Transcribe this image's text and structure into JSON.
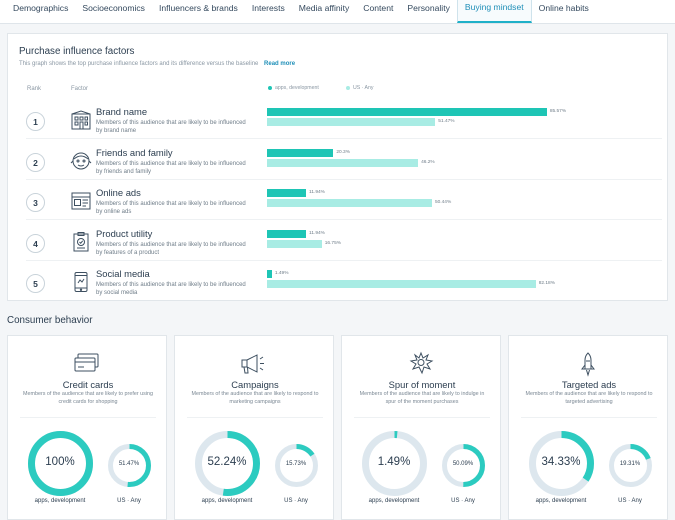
{
  "tabs": [
    {
      "label": "Demographics",
      "active": false
    },
    {
      "label": "Socioeconomics",
      "active": false
    },
    {
      "label": "Influencers & brands",
      "active": false
    },
    {
      "label": "Interests",
      "active": false
    },
    {
      "label": "Media affinity",
      "active": false
    },
    {
      "label": "Content",
      "active": false
    },
    {
      "label": "Personality",
      "active": false
    },
    {
      "label": "Buying mindset",
      "active": true
    },
    {
      "label": "Online habits",
      "active": false
    }
  ],
  "purchase": {
    "title": "Purchase influence factors",
    "subtitle": "This graph shows the top purchase influence factors and its difference versus the baseline",
    "read_more": "Read more",
    "col_rank": "Rank",
    "col_factor": "Factor",
    "legend_a": "apps, development",
    "legend_b": "US · Any",
    "colors": {
      "audience": "#1ec5b5",
      "baseline": "#a8ece4"
    },
    "factors": [
      {
        "rank": "1",
        "name": "Brand name",
        "desc": "Members of this audience that are likely to be influenced by brand name",
        "icon": "building-icon",
        "a": 85.57,
        "b": 51.47,
        "a_label": "85.57%",
        "b_label": "51.47%"
      },
      {
        "rank": "2",
        "name": "Friends and family",
        "desc": "Members of this audience that are likely to be influenced by friends and family",
        "icon": "face-icon",
        "a": 20.3,
        "b": 46.2,
        "a_label": "20.3%",
        "b_label": "46.2%"
      },
      {
        "rank": "3",
        "name": "Online ads",
        "desc": "Members of this audience that are likely to be influenced by online ads",
        "icon": "browser-icon",
        "a": 11.94,
        "b": 50.44,
        "a_label": "11.94%",
        "b_label": "50.44%"
      },
      {
        "rank": "4",
        "name": "Product utility",
        "desc": "Members of this audience that are likely to be influenced by features of a product",
        "icon": "clipboard-icon",
        "a": 11.94,
        "b": 16.75,
        "a_label": "11.94%",
        "b_label": "16.75%"
      },
      {
        "rank": "5",
        "name": "Social media",
        "desc": "Members of this audience that are likely to be influenced by social media",
        "icon": "phone-icon",
        "a": 1.49,
        "b": 82.18,
        "a_label": "1.49%",
        "b_label": "82.18%"
      }
    ]
  },
  "consumer": {
    "title": "Consumer behavior",
    "cards": [
      {
        "name": "Credit cards",
        "desc": "Members of the audience that are likely to prefer using credit cards for shopping",
        "icon": "credit-card-icon",
        "main_value": 100,
        "main_label": "100%",
        "main_caption": "apps, development",
        "base_value": 51.47,
        "base_label": "51.47%",
        "base_caption": "US · Any"
      },
      {
        "name": "Campaigns",
        "desc": "Members of the audience that are likely to respond to marketing campaigns",
        "icon": "megaphone-icon",
        "main_value": 52.24,
        "main_label": "52.24%",
        "main_caption": "apps, development",
        "base_value": 15.73,
        "base_label": "15.73%",
        "base_caption": "US · Any"
      },
      {
        "name": "Spur of moment",
        "desc": "Members of the audience that are likely to indulge in spur of the moment purchases",
        "icon": "explosion-icon",
        "main_value": 1.49,
        "main_label": "1.49%",
        "main_caption": "apps, development",
        "base_value": 50.09,
        "base_label": "50.09%",
        "base_caption": "US · Any"
      },
      {
        "name": "Targeted ads",
        "desc": "Members of the audience that are likely to respond to targeted advertising",
        "icon": "missile-icon",
        "main_value": 34.33,
        "main_label": "34.33%",
        "main_caption": "apps, development",
        "base_value": 19.31,
        "base_label": "19.31%",
        "base_caption": "US · Any"
      }
    ]
  }
}
